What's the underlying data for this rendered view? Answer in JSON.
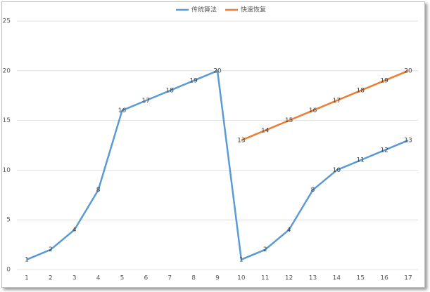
{
  "chart_data": {
    "type": "line",
    "categories": [
      "1",
      "2",
      "3",
      "4",
      "5",
      "6",
      "7",
      "8",
      "9",
      "10",
      "11",
      "12",
      "13",
      "14",
      "15",
      "16",
      "17"
    ],
    "series": [
      {
        "name": "传统算法",
        "color": "#5b9bd5",
        "values": [
          1,
          2,
          4,
          8,
          16,
          17,
          18,
          19,
          20,
          1,
          2,
          4,
          8,
          10,
          11,
          12,
          13
        ]
      },
      {
        "name": "快速恢复",
        "color": "#ed7d31",
        "values": [
          null,
          null,
          null,
          null,
          null,
          null,
          null,
          null,
          null,
          13,
          14,
          15,
          16,
          17,
          18,
          19,
          20
        ]
      }
    ],
    "ylim": [
      0,
      25
    ],
    "yticks": [
      0,
      5,
      10,
      15,
      20,
      25
    ],
    "grid": true,
    "legend": "top"
  }
}
